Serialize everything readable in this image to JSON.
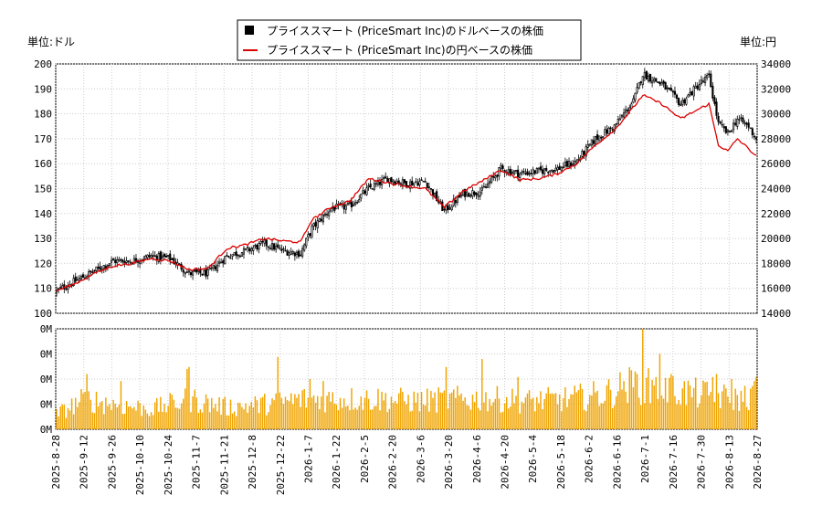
{
  "chart_data": {
    "type": "candlestick+line+bar",
    "legend": [
      {
        "label": "プライススマート (PriceSmart Inc)のドルベースの株価",
        "color": "#000000",
        "marker": "square"
      },
      {
        "label": "プライススマート (PriceSmart Inc)の円ベースの株価",
        "color": "#dd0000",
        "marker": "line"
      }
    ],
    "left_unit": "単位:ドル",
    "right_unit": "単位:円",
    "y_left": {
      "min": 100,
      "max": 200,
      "ticks": [
        100,
        110,
        120,
        130,
        140,
        150,
        160,
        170,
        180,
        190,
        200
      ]
    },
    "y_right": {
      "min": 14000,
      "max": 34000,
      "ticks": [
        14000,
        16000,
        18000,
        20000,
        22000,
        24000,
        26000,
        28000,
        30000,
        32000,
        34000
      ]
    },
    "volume_axis": {
      "tick_labels": [
        "0M",
        "0M",
        "0M",
        "0M",
        "0M"
      ]
    },
    "x_dates": [
      "2025-8-28",
      "2025-9-12",
      "2025-9-26",
      "2025-10-10",
      "2025-10-24",
      "2025-11-7",
      "2025-11-21",
      "2025-12-8",
      "2025-12-22",
      "2026-1-7",
      "2026-1-22",
      "2026-2-5",
      "2026-2-20",
      "2026-3-6",
      "2026-3-20",
      "2026-4-6",
      "2026-4-20",
      "2026-5-4",
      "2026-5-18",
      "2026-6-2",
      "2026-6-16",
      "2026-7-1",
      "2026-7-16",
      "2026-7-30",
      "2026-8-13",
      "2026-8-27"
    ],
    "usd_close_anchors": [
      [
        0,
        109
      ],
      [
        10,
        113
      ],
      [
        20,
        117
      ],
      [
        30,
        121
      ],
      [
        40,
        121
      ],
      [
        50,
        123
      ],
      [
        60,
        122
      ],
      [
        70,
        116
      ],
      [
        80,
        116
      ],
      [
        90,
        123
      ],
      [
        100,
        125
      ],
      [
        110,
        128
      ],
      [
        120,
        125
      ],
      [
        129,
        124
      ],
      [
        135,
        134
      ],
      [
        145,
        142
      ],
      [
        155,
        143
      ],
      [
        165,
        150
      ],
      [
        175,
        154
      ],
      [
        185,
        152
      ],
      [
        195,
        153
      ],
      [
        205,
        141
      ],
      [
        215,
        148
      ],
      [
        225,
        149
      ],
      [
        235,
        158
      ],
      [
        245,
        156
      ],
      [
        255,
        157
      ],
      [
        265,
        158
      ],
      [
        275,
        161
      ],
      [
        285,
        170
      ],
      [
        295,
        175
      ],
      [
        305,
        185
      ],
      [
        310,
        196
      ],
      [
        320,
        192
      ],
      [
        330,
        184
      ],
      [
        340,
        192
      ],
      [
        345,
        195
      ],
      [
        350,
        176
      ],
      [
        355,
        172
      ],
      [
        360,
        178
      ],
      [
        366,
        175
      ],
      [
        370,
        170
      ]
    ],
    "jpy_close_anchors": [
      [
        0,
        15800
      ],
      [
        10,
        16400
      ],
      [
        20,
        17200
      ],
      [
        30,
        17800
      ],
      [
        40,
        18000
      ],
      [
        50,
        18400
      ],
      [
        60,
        18200
      ],
      [
        70,
        17500
      ],
      [
        80,
        17600
      ],
      [
        90,
        19200
      ],
      [
        100,
        19500
      ],
      [
        110,
        20000
      ],
      [
        120,
        19800
      ],
      [
        129,
        19700
      ],
      [
        135,
        21500
      ],
      [
        145,
        22500
      ],
      [
        155,
        23000
      ],
      [
        165,
        24800
      ],
      [
        175,
        24500
      ],
      [
        185,
        24200
      ],
      [
        195,
        24000
      ],
      [
        205,
        22500
      ],
      [
        215,
        23800
      ],
      [
        225,
        24600
      ],
      [
        235,
        25500
      ],
      [
        245,
        24700
      ],
      [
        255,
        24800
      ],
      [
        265,
        25200
      ],
      [
        275,
        26000
      ],
      [
        285,
        27500
      ],
      [
        295,
        28700
      ],
      [
        305,
        30500
      ],
      [
        310,
        31500
      ],
      [
        320,
        30800
      ],
      [
        330,
        29600
      ],
      [
        340,
        30400
      ],
      [
        345,
        30800
      ],
      [
        350,
        27500
      ],
      [
        355,
        27000
      ],
      [
        360,
        28000
      ],
      [
        366,
        27200
      ],
      [
        370,
        26600
      ]
    ],
    "volume_relative_anchors": [
      [
        0,
        0.15
      ],
      [
        15,
        0.3
      ],
      [
        30,
        0.25
      ],
      [
        50,
        0.2
      ],
      [
        70,
        0.3
      ],
      [
        90,
        0.22
      ],
      [
        110,
        0.25
      ],
      [
        130,
        0.3
      ],
      [
        150,
        0.3
      ],
      [
        170,
        0.3
      ],
      [
        190,
        0.28
      ],
      [
        210,
        0.3
      ],
      [
        230,
        0.3
      ],
      [
        250,
        0.28
      ],
      [
        270,
        0.3
      ],
      [
        290,
        0.35
      ],
      [
        305,
        0.45
      ],
      [
        320,
        0.4
      ],
      [
        340,
        0.35
      ],
      [
        360,
        0.3
      ],
      [
        370,
        0.35
      ]
    ],
    "volume_spikes": [
      [
        16,
        0.55
      ],
      [
        34,
        0.48
      ],
      [
        69,
        0.6
      ],
      [
        70,
        0.62
      ],
      [
        117,
        0.72
      ],
      [
        134,
        0.5
      ],
      [
        141,
        0.48
      ],
      [
        206,
        0.62
      ],
      [
        225,
        0.7
      ],
      [
        244,
        0.52
      ],
      [
        300,
        0.48
      ],
      [
        307,
        0.55
      ],
      [
        310,
        1.0
      ],
      [
        317,
        0.52
      ],
      [
        319,
        0.75
      ],
      [
        325,
        0.55
      ],
      [
        347,
        0.52
      ],
      [
        349,
        0.55
      ],
      [
        357,
        0.5
      ],
      [
        370,
        0.52
      ]
    ],
    "n_days": 371
  }
}
